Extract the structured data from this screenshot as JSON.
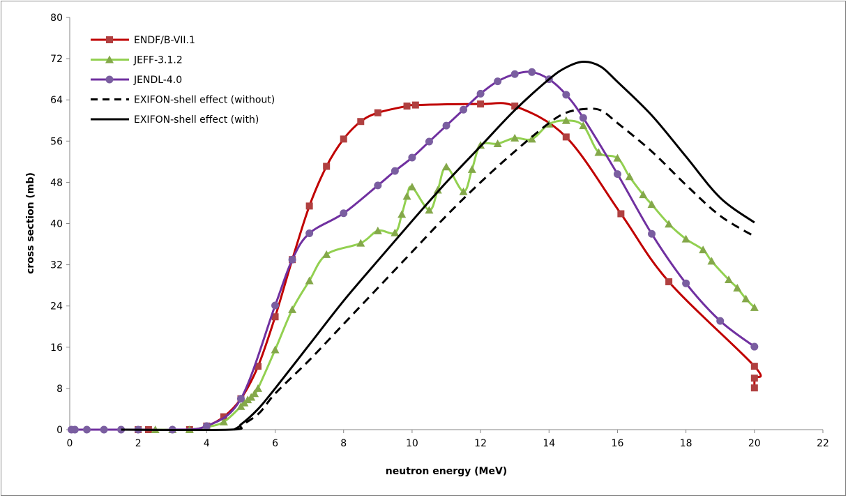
{
  "chart_data": {
    "type": "line",
    "title": "",
    "xlabel": "neutron energy (MeV)",
    "ylabel": "cross section (mb)",
    "xlim": [
      0,
      22
    ],
    "ylim": [
      0,
      80
    ],
    "xticks": [
      0,
      2,
      4,
      6,
      8,
      10,
      12,
      14,
      16,
      18,
      20,
      22
    ],
    "yticks": [
      0,
      8,
      16,
      24,
      32,
      40,
      48,
      56,
      64,
      72,
      80
    ],
    "grid": false,
    "legend_position": "top-left",
    "series": [
      {
        "name": "ENDF/B-VII.1",
        "color": "#c00000",
        "marker": "square",
        "marker_color": "#b04040",
        "dashed": false,
        "x": [
          2,
          2.3,
          3.5,
          4,
          4.5,
          5,
          5.5,
          6,
          6.5,
          7,
          7.5,
          8,
          8.5,
          9,
          9.85,
          10.1,
          12,
          13,
          14.5,
          16.1,
          17.5,
          20,
          20,
          20
        ],
        "y": [
          0,
          0,
          0,
          0.7,
          2.5,
          6,
          12.3,
          21.9,
          33,
          43.4,
          51.1,
          56.4,
          59.8,
          61.5,
          62.8,
          63,
          63.2,
          62.8,
          56.8,
          41.9,
          28.7,
          12.3,
          10,
          8.1
        ]
      },
      {
        "name": "JEFF-3.1.2",
        "color": "#92d050",
        "marker": "triangle",
        "marker_color": "#84a84a",
        "dashed": false,
        "x": [
          2.5,
          3,
          3.5,
          4,
          4.5,
          5,
          5.1,
          5.2,
          5.3,
          5.4,
          5.5,
          6,
          6.5,
          7,
          7.5,
          8.5,
          9,
          9.5,
          9.7,
          9.85,
          10,
          10.5,
          10.75,
          11,
          11.5,
          11.75,
          12,
          12.5,
          13,
          13.5,
          14,
          14.5,
          15,
          15.45,
          16,
          16.35,
          16.75,
          17,
          17.5,
          18,
          18.5,
          18.75,
          19.25,
          19.5,
          19.75,
          20
        ],
        "y": [
          0,
          0,
          0,
          0.5,
          1.5,
          4.5,
          5.2,
          5.8,
          6.3,
          7,
          8,
          15.5,
          23.3,
          28.9,
          34,
          36.2,
          38.6,
          38.2,
          41.8,
          45.3,
          47.1,
          42.6,
          46.5,
          51,
          46.2,
          50.5,
          55.2,
          55.5,
          56.6,
          56.4,
          59.3,
          60,
          59,
          53.8,
          52.7,
          49.1,
          45.6,
          43.7,
          39.9,
          37,
          34.9,
          32.7,
          29.1,
          27.5,
          25.4,
          23.7
        ]
      },
      {
        "name": "JENDL-4.0",
        "color": "#7030a0",
        "marker": "circle",
        "marker_color": "#7a5ea0",
        "dashed": false,
        "x": [
          0.05,
          0.15,
          0.5,
          1,
          1.5,
          2,
          3,
          4,
          5,
          6,
          6.5,
          7,
          8,
          9,
          9.5,
          10,
          10.5,
          11,
          11.5,
          12,
          12.5,
          13,
          13.5,
          14,
          14.5,
          15,
          16,
          17,
          18,
          19,
          20
        ],
        "y": [
          0,
          0,
          0,
          0,
          0,
          0,
          0,
          0.7,
          6,
          24.1,
          33,
          38.1,
          42,
          47.4,
          50.2,
          52.8,
          55.9,
          59,
          62.1,
          65.2,
          67.6,
          69,
          69.4,
          68,
          65,
          60.5,
          49.6,
          38,
          28.4,
          21.1,
          16.1
        ]
      },
      {
        "name": "EXIFON-shell effect (without)",
        "color": "#000000",
        "marker": "none",
        "dashed": true,
        "x": [
          4.8,
          5.5,
          6,
          7,
          8,
          9,
          10,
          11,
          12,
          13,
          14,
          14.5,
          15,
          15.5,
          16,
          17,
          18,
          19,
          20
        ],
        "y": [
          0,
          3,
          7,
          13.5,
          20.5,
          27.5,
          34.5,
          41.5,
          48,
          54,
          59.5,
          61.5,
          62.2,
          62,
          59.5,
          54,
          47.5,
          41.5,
          37.5
        ]
      },
      {
        "name": "EXIFON-shell effect (with)",
        "color": "#000000",
        "marker": "none",
        "dashed": false,
        "x": [
          1.5,
          4.7,
          5,
          5.5,
          6,
          7,
          8,
          9,
          10,
          11,
          12,
          13,
          14,
          14.5,
          15,
          15.5,
          16,
          17,
          18,
          19,
          20
        ],
        "y": [
          0,
          0,
          1,
          4,
          8,
          16.5,
          25,
          32.8,
          40.5,
          48,
          55,
          62,
          68,
          70.3,
          71.4,
          70.5,
          67.5,
          61,
          53,
          45,
          40.2
        ]
      }
    ]
  }
}
